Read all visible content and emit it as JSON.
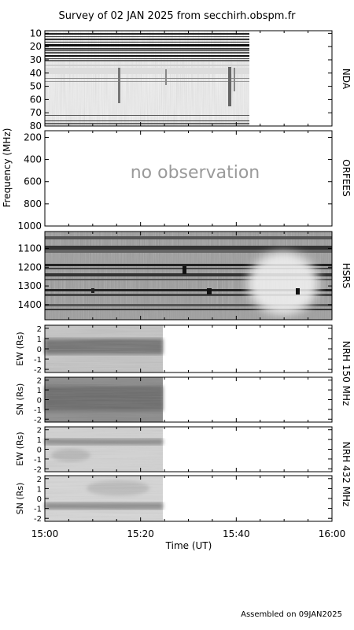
{
  "title": "Survey of 02 JAN 2025 from secchirh.obspm.fr",
  "footer": "Assembled on 09JAN2025",
  "chart_data": {
    "type": "heatmap",
    "title": "Survey of 02 JAN 2025 from secchirh.obspm.fr",
    "xlabel": "Time (UT)",
    "x_ticks": [
      "15:00",
      "15:20",
      "15:40",
      "16:00"
    ],
    "x_range": [
      "15:00",
      "16:00"
    ],
    "freq_ylabel": "Frequency (MHz)",
    "panels": [
      {
        "id": "nda",
        "name": "NDA",
        "ylim": [
          80,
          8
        ],
        "y_ticks": [
          10,
          20,
          30,
          40,
          50,
          60,
          70,
          80
        ],
        "observed_until": "15:42",
        "note": ""
      },
      {
        "id": "orfees",
        "name": "ORFEES",
        "ylim": [
          1000,
          140
        ],
        "y_ticks": [
          200,
          400,
          600,
          800,
          1000
        ],
        "observed_until": "",
        "note": "no observation"
      },
      {
        "id": "hsrs",
        "name": "HSRS",
        "ylim": [
          1480,
          1010
        ],
        "y_ticks": [
          1100,
          1200,
          1300,
          1400
        ],
        "observed_until": "16:00",
        "note": ""
      },
      {
        "id": "nrh150ew",
        "name": "",
        "ylabel": "EW (Rs)",
        "ylim": [
          -2.3,
          2.3
        ],
        "y_ticks": [
          2,
          1,
          0,
          -1,
          -2
        ],
        "observed_until": "15:24",
        "note": ""
      },
      {
        "id": "nrh150sn",
        "name": "",
        "ylabel": "SN (Rs)",
        "ylim": [
          -2.3,
          2.3
        ],
        "y_ticks": [
          2,
          1,
          0,
          -1,
          -2
        ],
        "observed_until": "15:24",
        "note": ""
      },
      {
        "id": "nrh432ew",
        "name": "",
        "ylabel": "EW (Rs)",
        "ylim": [
          -2.3,
          2.3
        ],
        "y_ticks": [
          2,
          1,
          0,
          -1,
          -2
        ],
        "observed_until": "15:24",
        "note": ""
      },
      {
        "id": "nrh432sn",
        "name": "",
        "ylabel": "SN (Rs)",
        "ylim": [
          -2.3,
          2.3
        ],
        "y_ticks": [
          2,
          1,
          0,
          -1,
          -2
        ],
        "observed_until": "15:24",
        "note": ""
      }
    ],
    "nrh_labels": [
      "NRH 150 MHz",
      "NRH 432 MHz"
    ],
    "grid": false,
    "colormap": "grayscale"
  }
}
